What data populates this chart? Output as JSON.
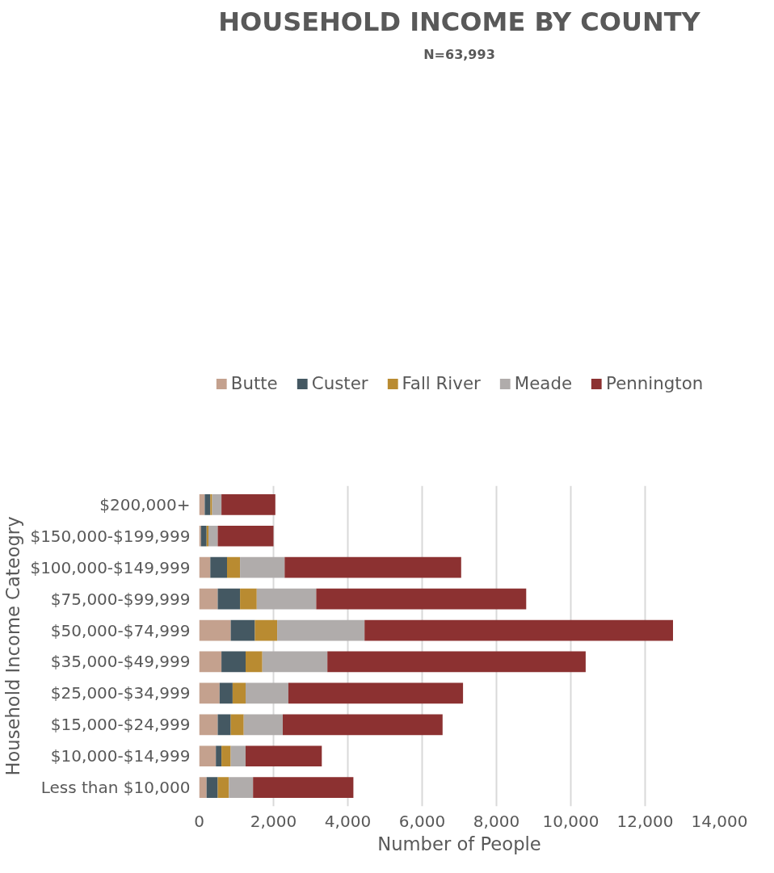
{
  "chart_data": {
    "type": "bar",
    "orientation": "horizontal",
    "stacked": true,
    "title": "HOUSEHOLD INCOME BY COUNTY",
    "subtitle": "N=63,993",
    "xlabel": "Number of People",
    "ylabel": "Household Income Cateogry",
    "categories": [
      "$200,000+",
      "$150,000-$199,999",
      "$100,000-$149,999",
      "$75,000-$99,999",
      "$50,000-$74,999",
      "$35,000-$49,999",
      "$25,000-$34,999",
      "$15,000-$24,999",
      "$10,000-$14,999",
      "Less than $10,000"
    ],
    "series": [
      {
        "name": "Butte",
        "color": "#c4a18e",
        "values": [
          150,
          50,
          300,
          500,
          850,
          600,
          550,
          500,
          450,
          200
        ]
      },
      {
        "name": "Custer",
        "color": "#445862",
        "values": [
          150,
          150,
          450,
          600,
          650,
          650,
          350,
          350,
          150,
          300
        ]
      },
      {
        "name": "Fall River",
        "color": "#b98b31",
        "values": [
          50,
          50,
          350,
          450,
          600,
          450,
          350,
          350,
          250,
          300
        ]
      },
      {
        "name": "Meade",
        "color": "#b0acab",
        "values": [
          250,
          250,
          1200,
          1600,
          2350,
          1750,
          1150,
          1050,
          400,
          650
        ]
      },
      {
        "name": "Pennington",
        "color": "#8c3131",
        "values": [
          1450,
          1500,
          4750,
          5650,
          8300,
          6950,
          4700,
          4300,
          2050,
          2700
        ]
      }
    ],
    "xlim": [
      0,
      14000
    ],
    "xticks": [
      {
        "value": 0,
        "label": "0"
      },
      {
        "value": 2000,
        "label": "2,000"
      },
      {
        "value": 4000,
        "label": "4,000"
      },
      {
        "value": 6000,
        "label": "6,000"
      },
      {
        "value": 8000,
        "label": "8,000"
      },
      {
        "value": 10000,
        "label": "10,000"
      },
      {
        "value": 12000,
        "label": "12,000"
      },
      {
        "value": 14000,
        "label": "14,000"
      }
    ],
    "grid": "x",
    "legend": "top"
  }
}
